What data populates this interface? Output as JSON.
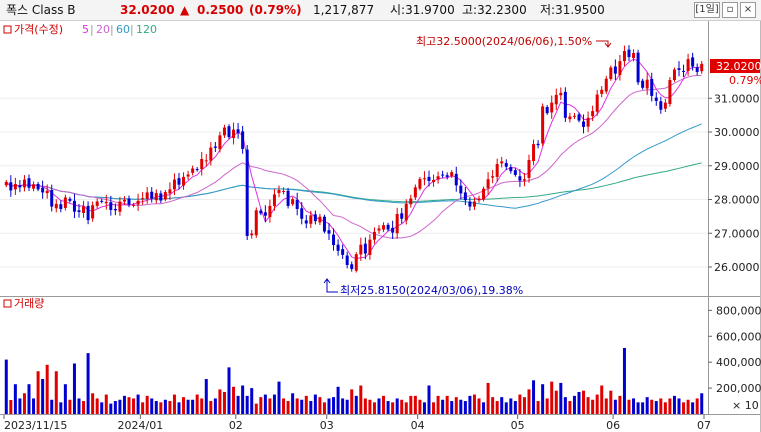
{
  "header": {
    "name": "폭스 Class B",
    "price": "32.0200",
    "change_arrow": "▲",
    "change": "0.2500",
    "change_pct": "(0.79%)",
    "volume": "1,217,877",
    "open": "시:31.9700",
    "high": "고:32.2300",
    "low": "저:31.9500",
    "period_button": "[1일]",
    "minimize_button": "▫",
    "close_button": "×"
  },
  "legend": {
    "price_label": "가격(수정)",
    "ma": [
      {
        "label": "5",
        "color": "#e030e0"
      },
      {
        "label": "20",
        "color": "#cc66cc"
      },
      {
        "label": "60",
        "color": "#3399cc"
      },
      {
        "label": "120",
        "color": "#33aa88"
      }
    ],
    "volume_label": "거래량"
  },
  "annotations": {
    "high": "최고32.5000(2024/06/06),1.50%",
    "low": "최저25.8150(2024/03/06),19.38%"
  },
  "last_price_tag": {
    "price": "32.0200",
    "pct": "0.79%"
  },
  "colors": {
    "up": "#e00000",
    "down": "#0000d0",
    "high_anno": "#d00000",
    "low_anno": "#0000c0"
  },
  "chart_data": [
    {
      "type": "candlestick",
      "title": "폭스 Class B",
      "y_ticks": [
        "26.0000",
        "27.0000",
        "28.0000",
        "29.0000",
        "30.0000",
        "31.0000"
      ],
      "ylim": [
        25.2,
        33.2
      ],
      "x_ticks": [
        {
          "label": "2023/11/15",
          "index": 0
        },
        {
          "label": "2024/01",
          "index": 30
        },
        {
          "label": "02",
          "index": 51
        },
        {
          "label": "03",
          "index": 71
        },
        {
          "label": "04",
          "index": 91
        },
        {
          "label": "05",
          "index": 113
        },
        {
          "label": "06",
          "index": 134
        },
        {
          "label": "07",
          "index": 154
        }
      ],
      "n_candles": 154,
      "close": [
        28.52,
        28.27,
        28.46,
        28.36,
        28.59,
        28.35,
        28.45,
        28.3,
        28.21,
        28.26,
        27.79,
        27.87,
        27.72,
        28.06,
        27.96,
        27.64,
        27.63,
        27.8,
        27.39,
        27.83,
        27.94,
        27.94,
        27.93,
        27.69,
        27.68,
        27.94,
        27.99,
        27.85,
        27.84,
        27.96,
        28.04,
        28.21,
        28.03,
        28.19,
        27.97,
        28.22,
        28.3,
        28.59,
        28.44,
        28.67,
        28.74,
        28.92,
        28.88,
        29.2,
        29.16,
        29.54,
        29.53,
        29.9,
        30.13,
        29.85,
        30.07,
        29.97,
        29.5,
        26.92,
        26.99,
        27.68,
        27.59,
        27.52,
        27.81,
        28.15,
        28.28,
        28.25,
        27.81,
        28.01,
        27.72,
        27.43,
        27.29,
        27.53,
        27.36,
        27.49,
        27.05,
        26.99,
        26.65,
        26.48,
        26.36,
        26.06,
        25.94,
        26.38,
        26.66,
        26.4,
        26.81,
        27.04,
        27.14,
        27.24,
        27.11,
        27.02,
        27.57,
        27.43,
        27.87,
        28.03,
        28.36,
        28.61,
        28.63,
        28.55,
        28.58,
        28.69,
        28.74,
        28.67,
        28.81,
        28.42,
        28.18,
        27.98,
        27.79,
        27.94,
        28.03,
        28.32,
        28.6,
        28.69,
        29.05,
        29.13,
        28.97,
        28.84,
        28.73,
        28.56,
        28.6,
        29.17,
        29.64,
        29.61,
        30.76,
        30.56,
        30.87,
        31.1,
        31.16,
        30.42,
        30.46,
        30.48,
        30.34,
        30.15,
        30.42,
        30.62,
        31.11,
        31.25,
        31.58,
        31.91,
        31.73,
        32.1,
        32.4,
        32.22,
        32.34,
        31.47,
        31.31,
        31.55,
        31.07,
        30.92,
        30.66,
        30.87,
        31.54,
        31.85,
        31.84,
        31.8,
        32.16,
        31.94,
        31.78,
        32.02
      ],
      "volume_ticks": [
        "200,000",
        "400,000",
        "600,000",
        "800,000"
      ],
      "volume_unit": "× 10",
      "volume_ylim": [
        0,
        880000
      ],
      "volume": [
        420000,
        108000,
        230000,
        120000,
        160000,
        230000,
        120000,
        330000,
        270000,
        380000,
        110000,
        330000,
        90000,
        230000,
        110000,
        390000,
        120000,
        100000,
        470000,
        160000,
        120000,
        90000,
        150000,
        80000,
        100000,
        110000,
        140000,
        130000,
        120000,
        150000,
        90000,
        140000,
        120000,
        100000,
        90000,
        110000,
        100000,
        150000,
        90000,
        130000,
        110000,
        110000,
        150000,
        120000,
        270000,
        100000,
        120000,
        190000,
        170000,
        360000,
        210000,
        140000,
        220000,
        140000,
        200000,
        80000,
        130000,
        150000,
        120000,
        150000,
        250000,
        120000,
        100000,
        160000,
        120000,
        110000,
        140000,
        100000,
        150000,
        130000,
        90000,
        120000,
        130000,
        210000,
        120000,
        110000,
        190000,
        140000,
        220000,
        120000,
        110000,
        90000,
        120000,
        140000,
        100000,
        90000,
        120000,
        110000,
        90000,
        140000,
        140000,
        110000,
        90000,
        220000,
        90000,
        140000,
        110000,
        140000,
        100000,
        130000,
        110000,
        100000,
        140000,
        150000,
        120000,
        90000,
        240000,
        130000,
        100000,
        130000,
        90000,
        120000,
        100000,
        150000,
        130000,
        190000,
        260000,
        100000,
        230000,
        120000,
        250000,
        180000,
        240000,
        130000,
        100000,
        140000,
        170000,
        180000,
        130000,
        110000,
        150000,
        220000,
        120000,
        180000,
        110000,
        140000,
        510000,
        110000,
        120000,
        90000,
        90000,
        130000,
        110000,
        100000,
        120000,
        90000,
        120000,
        140000,
        120000,
        90000,
        110000,
        90000,
        120000,
        160000
      ],
      "volume_up": [
        false,
        true,
        false,
        false,
        true,
        false,
        false,
        true,
        false,
        true,
        false,
        true,
        false,
        false,
        true,
        false,
        false,
        true,
        false,
        true,
        true,
        false,
        true,
        false,
        false,
        false,
        false,
        true,
        true,
        false,
        true,
        true,
        false,
        false,
        true,
        false,
        true,
        true,
        false,
        true,
        false,
        false,
        true,
        true,
        false,
        true,
        false,
        true,
        true,
        false,
        true,
        false,
        false,
        false,
        false,
        true,
        true,
        false,
        true,
        false,
        false,
        true,
        true,
        false,
        true,
        false,
        true,
        false,
        false,
        true,
        true,
        false,
        false,
        false,
        false,
        false,
        true,
        false,
        true,
        true,
        true,
        true,
        false,
        true,
        false,
        true,
        false,
        true,
        true,
        true,
        true,
        true,
        false,
        false,
        true,
        true,
        false,
        true,
        false,
        true,
        false,
        false,
        false,
        true,
        true,
        false,
        true,
        true,
        true,
        false,
        false,
        false,
        false,
        true,
        true,
        true,
        false,
        true,
        false,
        true,
        true,
        true,
        false,
        false,
        true,
        false,
        false,
        true,
        true,
        true,
        true,
        true,
        true,
        true,
        false,
        true,
        false,
        true,
        false,
        false,
        false,
        false,
        true,
        false,
        true,
        true,
        true,
        false,
        false,
        true,
        true,
        false,
        true,
        false
      ]
    }
  ]
}
